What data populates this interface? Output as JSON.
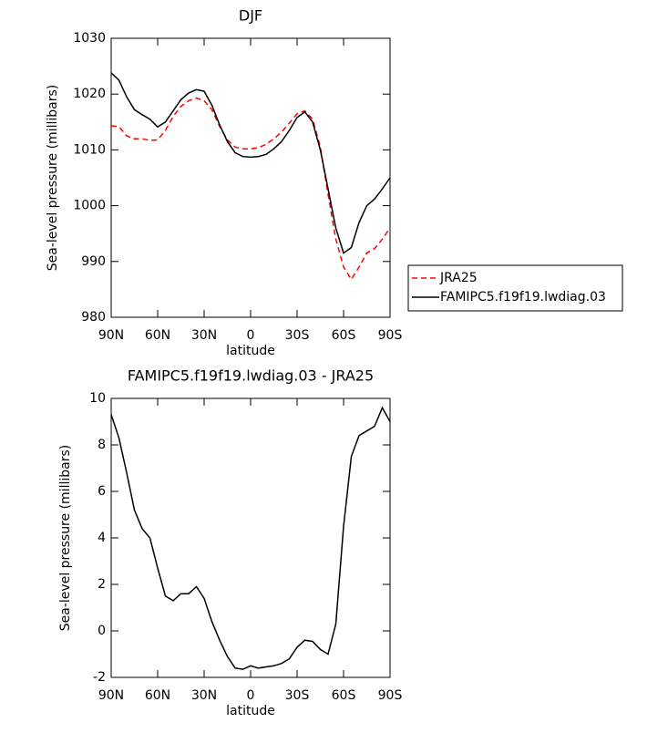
{
  "chart_data": [
    {
      "type": "line",
      "title": "DJF",
      "xlabel": "latitude",
      "ylabel": "Sea-level pressure (millibars)",
      "x": [
        90,
        85,
        80,
        75,
        70,
        65,
        60,
        55,
        50,
        45,
        40,
        35,
        30,
        25,
        20,
        15,
        10,
        5,
        0,
        -5,
        -10,
        -15,
        -20,
        -25,
        -30,
        -35,
        -40,
        -45,
        -50,
        -55,
        -60,
        -65,
        -70,
        -75,
        -80,
        -85,
        -90
      ],
      "series": [
        {
          "name": "JRA25",
          "color": "#ff0000",
          "dash": true,
          "values": [
            1014.3,
            1014.2,
            1012.5,
            1012,
            1012,
            1011.7,
            1011.8,
            1013.5,
            1016,
            1017.8,
            1018.8,
            1019.3,
            1018.8,
            1017.2,
            1014.2,
            1011.8,
            1010.5,
            1010.2,
            1010.2,
            1010.4,
            1011,
            1012,
            1013.2,
            1014.8,
            1016.5,
            1017,
            1015.5,
            1010.5,
            1002,
            994,
            989,
            986.8,
            989,
            991.5,
            992.3,
            994,
            996
          ]
        },
        {
          "name": "FAMIPC5.f19f19.lwdiag.03",
          "color": "#000000",
          "dash": false,
          "values": [
            1023.8,
            1022.5,
            1019.5,
            1017.2,
            1016.3,
            1015.5,
            1014.1,
            1015,
            1017,
            1019,
            1020.2,
            1020.8,
            1020.5,
            1018,
            1014.5,
            1011.5,
            1009.5,
            1008.8,
            1008.7,
            1008.8,
            1009.2,
            1010.2,
            1011.5,
            1013.5,
            1015.8,
            1016.8,
            1015,
            1010,
            1003,
            996,
            991.5,
            992.5,
            997,
            1000,
            1001.2,
            1003,
            1005
          ]
        }
      ],
      "xlim": [
        90,
        -90
      ],
      "xticks": [
        {
          "value": 90,
          "label": "90N"
        },
        {
          "value": 60,
          "label": "60N"
        },
        {
          "value": 30,
          "label": "30N"
        },
        0,
        {
          "value": -30,
          "label": "30S"
        },
        {
          "value": -60,
          "label": "60S"
        },
        {
          "value": -90,
          "label": "90S"
        }
      ],
      "ylim": [
        980,
        1030
      ],
      "yticks": [
        980,
        990,
        1000,
        1010,
        1020,
        1030
      ],
      "legend": "right"
    },
    {
      "type": "line",
      "title": "FAMIPC5.f19f19.lwdiag.03 - JRA25",
      "xlabel": "latitude",
      "ylabel": "Sea-level pressure (millibars)",
      "x": [
        90,
        85,
        80,
        75,
        70,
        65,
        60,
        55,
        50,
        45,
        40,
        35,
        30,
        25,
        20,
        15,
        10,
        5,
        0,
        -5,
        -10,
        -15,
        -20,
        -25,
        -30,
        -35,
        -40,
        -45,
        -50,
        -55,
        -60,
        -65,
        -70,
        -75,
        -80,
        -85,
        -90
      ],
      "color": "#000000",
      "values": [
        9.3,
        8.3,
        6.8,
        5.2,
        4.4,
        4.0,
        2.7,
        1.5,
        1.3,
        1.6,
        1.6,
        1.9,
        1.4,
        0.4,
        -0.4,
        -1.1,
        -1.6,
        -1.65,
        -1.5,
        -1.6,
        -1.55,
        -1.5,
        -1.4,
        -1.2,
        -0.7,
        -0.4,
        -0.45,
        -0.8,
        -1.0,
        0.3,
        4.5,
        7.5,
        8.4,
        8.6,
        8.8,
        9.6,
        9.0
      ],
      "xlim": [
        90,
        -90
      ],
      "xticks": [
        {
          "value": 90,
          "label": "90N"
        },
        {
          "value": 60,
          "label": "60N"
        },
        {
          "value": 30,
          "label": "30N"
        },
        0,
        {
          "value": -30,
          "label": "30S"
        },
        {
          "value": -60,
          "label": "60S"
        },
        {
          "value": -90,
          "label": "90S"
        }
      ],
      "ylim": [
        -2,
        10
      ],
      "yticks": [
        -2,
        0,
        2,
        4,
        6,
        8,
        10
      ]
    }
  ]
}
